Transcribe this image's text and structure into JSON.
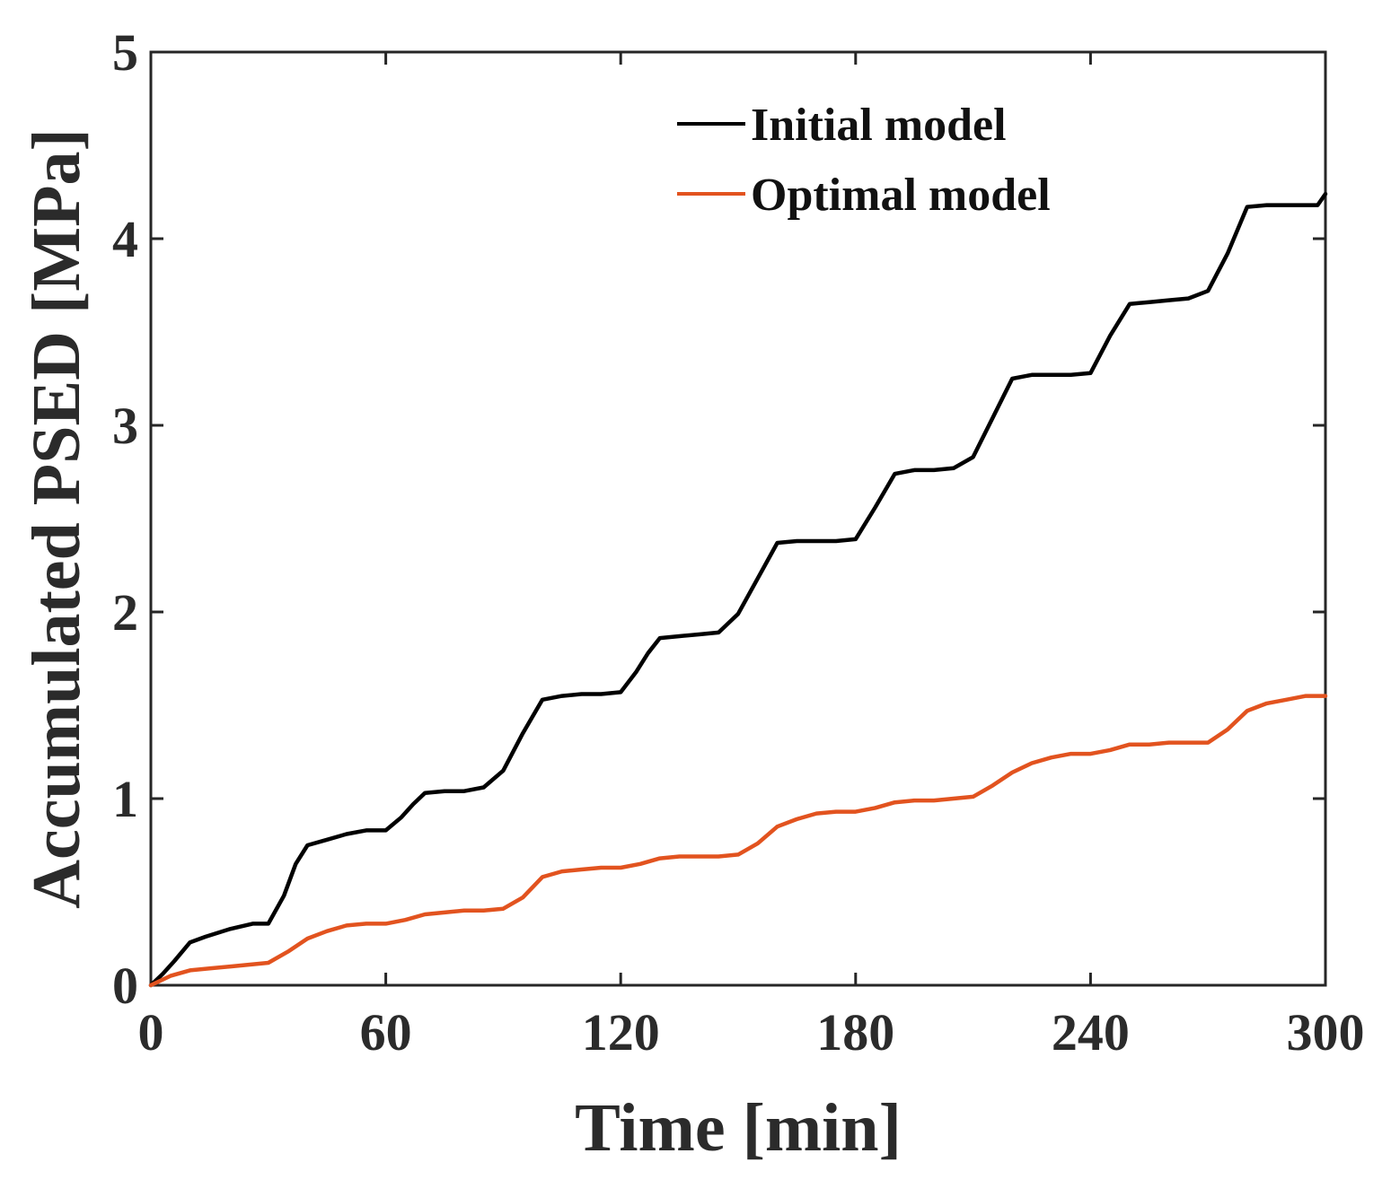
{
  "chart_data": {
    "type": "line",
    "title": "",
    "xlabel": "Time [min]",
    "ylabel": "Accumulated PSED [MPa]",
    "xlim": [
      0,
      300
    ],
    "ylim": [
      0,
      5
    ],
    "xticks": [
      0,
      60,
      120,
      180,
      240,
      300
    ],
    "yticks": [
      0,
      1,
      2,
      3,
      4,
      5
    ],
    "xtick_labels": [
      "0",
      "60",
      "120",
      "180",
      "240",
      "300"
    ],
    "ytick_labels": [
      "0",
      "1",
      "2",
      "3",
      "4",
      "5"
    ],
    "grid": false,
    "legend_position": "top-right",
    "series": [
      {
        "name": "Initial model",
        "color": "#000000",
        "x": [
          0,
          3,
          6,
          10,
          14,
          20,
          26,
          30,
          34,
          37,
          40,
          45,
          50,
          55,
          60,
          64,
          67,
          70,
          75,
          80,
          85,
          90,
          95,
          100,
          105,
          110,
          115,
          120,
          124,
          127,
          130,
          135,
          140,
          145,
          150,
          155,
          160,
          165,
          170,
          175,
          180,
          185,
          190,
          195,
          200,
          205,
          210,
          215,
          220,
          225,
          230,
          235,
          240,
          245,
          250,
          255,
          260,
          265,
          270,
          275,
          280,
          285,
          290,
          295,
          298,
          300
        ],
        "values": [
          0,
          0.06,
          0.13,
          0.23,
          0.26,
          0.3,
          0.33,
          0.33,
          0.48,
          0.65,
          0.75,
          0.78,
          0.81,
          0.83,
          0.83,
          0.9,
          0.97,
          1.03,
          1.04,
          1.04,
          1.06,
          1.15,
          1.35,
          1.53,
          1.55,
          1.56,
          1.56,
          1.57,
          1.68,
          1.78,
          1.86,
          1.87,
          1.88,
          1.89,
          1.99,
          2.18,
          2.37,
          2.38,
          2.38,
          2.38,
          2.39,
          2.56,
          2.74,
          2.76,
          2.76,
          2.77,
          2.83,
          3.04,
          3.25,
          3.27,
          3.27,
          3.27,
          3.28,
          3.48,
          3.65,
          3.66,
          3.67,
          3.68,
          3.72,
          3.92,
          4.17,
          4.18,
          4.18,
          4.18,
          4.18,
          4.24
        ]
      },
      {
        "name": "Optimal model",
        "color": "#e2531f",
        "x": [
          0,
          5,
          10,
          15,
          20,
          25,
          30,
          35,
          40,
          45,
          50,
          55,
          60,
          65,
          70,
          75,
          80,
          85,
          90,
          95,
          100,
          105,
          110,
          115,
          120,
          125,
          130,
          135,
          140,
          145,
          150,
          155,
          160,
          165,
          170,
          175,
          180,
          185,
          190,
          195,
          200,
          205,
          210,
          215,
          220,
          225,
          230,
          235,
          240,
          245,
          250,
          255,
          260,
          265,
          270,
          275,
          280,
          285,
          290,
          295,
          300
        ],
        "values": [
          0,
          0.05,
          0.08,
          0.09,
          0.1,
          0.11,
          0.12,
          0.18,
          0.25,
          0.29,
          0.32,
          0.33,
          0.33,
          0.35,
          0.38,
          0.39,
          0.4,
          0.4,
          0.41,
          0.47,
          0.58,
          0.61,
          0.62,
          0.63,
          0.63,
          0.65,
          0.68,
          0.69,
          0.69,
          0.69,
          0.7,
          0.76,
          0.85,
          0.89,
          0.92,
          0.93,
          0.93,
          0.95,
          0.98,
          0.99,
          0.99,
          1.0,
          1.01,
          1.07,
          1.14,
          1.19,
          1.22,
          1.24,
          1.24,
          1.26,
          1.29,
          1.29,
          1.3,
          1.3,
          1.3,
          1.37,
          1.47,
          1.51,
          1.53,
          1.55,
          1.55
        ]
      }
    ]
  }
}
